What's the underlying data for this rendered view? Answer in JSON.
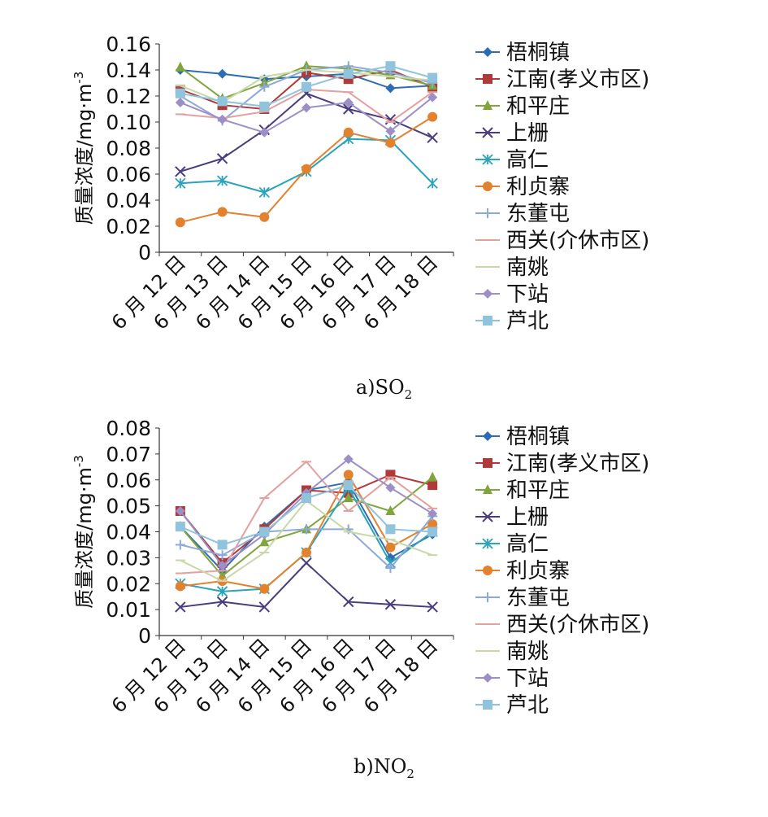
{
  "chart_data": [
    {
      "id": "so2",
      "type": "line",
      "caption": "a)SO",
      "caption_sub": "2",
      "ylabel": "质量浓度/mg·m",
      "ylabel_sup": "-3",
      "ylim": [
        0,
        0.16
      ],
      "yticks": [
        "0",
        "0.02",
        "0.04",
        "0.06",
        "0.08",
        "0.10",
        "0.12",
        "0.14",
        "0.16"
      ],
      "categories": [
        "6 月 12 日",
        "6 月 13 日",
        "6 月 14 日",
        "6 月 15 日",
        "6 月 16 日",
        "6 月 17 日",
        "6 月 18 日"
      ],
      "grid": false,
      "legend_position": "right",
      "series": [
        {
          "name": "梧桐镇",
          "color": "#2e6db4",
          "marker": "diamond",
          "values": [
            0.14,
            0.137,
            0.133,
            0.135,
            0.137,
            0.126,
            0.128
          ]
        },
        {
          "name": "江南(孝义市区)",
          "color": "#b03a3a",
          "marker": "square",
          "values": [
            0.125,
            0.113,
            0.11,
            0.138,
            0.133,
            0.14,
            0.127
          ]
        },
        {
          "name": "和平庄",
          "color": "#7fa53c",
          "marker": "triangle",
          "values": [
            0.142,
            0.118,
            0.13,
            0.143,
            0.141,
            0.136,
            0.128
          ]
        },
        {
          "name": "上栅",
          "color": "#4b3c7e",
          "marker": "x",
          "values": [
            0.062,
            0.072,
            0.094,
            0.122,
            0.11,
            0.102,
            0.088
          ]
        },
        {
          "name": "高仁",
          "color": "#2aa3bd",
          "marker": "star",
          "values": [
            0.053,
            0.055,
            0.046,
            0.062,
            0.087,
            0.086,
            0.053
          ]
        },
        {
          "name": "利贞寨",
          "color": "#e2812e",
          "marker": "circle",
          "values": [
            0.023,
            0.031,
            0.027,
            0.064,
            0.092,
            0.084,
            0.104
          ]
        },
        {
          "name": "东董屯",
          "color": "#8ea8d8",
          "marker": "plus",
          "values": [
            0.12,
            0.101,
            0.127,
            0.14,
            0.143,
            0.138,
            0.13
          ]
        },
        {
          "name": "西关(介休市区)",
          "color": "#e4a0a0",
          "marker": "dash",
          "values": [
            0.106,
            0.103,
            0.108,
            0.125,
            0.123,
            0.1,
            0.123
          ]
        },
        {
          "name": "南姚",
          "color": "#c8d8a8",
          "marker": "dash",
          "values": [
            0.128,
            0.115,
            0.135,
            0.14,
            0.138,
            0.135,
            0.132
          ]
        },
        {
          "name": "下站",
          "color": "#9c8fc6",
          "marker": "diamond",
          "values": [
            0.115,
            0.102,
            0.092,
            0.111,
            0.115,
            0.093,
            0.119
          ]
        },
        {
          "name": "芦北",
          "color": "#90c4dc",
          "marker": "square",
          "values": [
            0.122,
            0.116,
            0.112,
            0.127,
            0.137,
            0.143,
            0.134
          ]
        }
      ]
    },
    {
      "id": "no2",
      "type": "line",
      "caption": "b)NO",
      "caption_sub": "2",
      "ylabel": "质量浓度/mg·m",
      "ylabel_sup": "-3",
      "ylim": [
        0,
        0.08
      ],
      "yticks": [
        "0",
        "0.01",
        "0.02",
        "0.03",
        "0.04",
        "0.05",
        "0.06",
        "0.07",
        "0.08"
      ],
      "categories": [
        "6 月 12 日",
        "6 月 13 日",
        "6 月 14 日",
        "6 月 15 日",
        "6 月 16 日",
        "6 月 17 日",
        "6 月 18 日"
      ],
      "grid": false,
      "legend_position": "right",
      "series": [
        {
          "name": "梧桐镇",
          "color": "#2e6db4",
          "marker": "diamond",
          "values": [
            0.042,
            0.025,
            0.042,
            0.056,
            0.059,
            0.03,
            0.039
          ]
        },
        {
          "name": "江南(孝义市区)",
          "color": "#b03a3a",
          "marker": "square",
          "values": [
            0.048,
            0.028,
            0.041,
            0.056,
            0.055,
            0.062,
            0.058
          ]
        },
        {
          "name": "和平庄",
          "color": "#7fa53c",
          "marker": "triangle",
          "values": [
            0.042,
            0.023,
            0.036,
            0.041,
            0.053,
            0.048,
            0.061
          ]
        },
        {
          "name": "上栅",
          "color": "#4b3c7e",
          "marker": "x",
          "values": [
            0.011,
            0.013,
            0.011,
            0.028,
            0.013,
            0.012,
            0.011
          ]
        },
        {
          "name": "高仁",
          "color": "#2aa3bd",
          "marker": "star",
          "values": [
            0.02,
            0.017,
            0.018,
            0.032,
            0.057,
            0.028,
            0.04
          ]
        },
        {
          "name": "利贞寨",
          "color": "#e2812e",
          "marker": "circle",
          "values": [
            0.019,
            0.021,
            0.018,
            0.032,
            0.062,
            0.034,
            0.043
          ]
        },
        {
          "name": "东董屯",
          "color": "#8ea8d8",
          "marker": "plus",
          "values": [
            0.035,
            0.031,
            0.04,
            0.041,
            0.041,
            0.026,
            0.046
          ]
        },
        {
          "name": "西关(介休市区)",
          "color": "#e4a0a0",
          "marker": "dash",
          "values": [
            0.024,
            0.025,
            0.053,
            0.067,
            0.048,
            0.061,
            0.049
          ]
        },
        {
          "name": "南姚",
          "color": "#c8d8a8",
          "marker": "dash",
          "values": [
            0.029,
            0.021,
            0.032,
            0.052,
            0.04,
            0.037,
            0.031
          ]
        },
        {
          "name": "下站",
          "color": "#9c8fc6",
          "marker": "diamond",
          "values": [
            0.048,
            0.027,
            0.039,
            0.055,
            0.068,
            0.057,
            0.047
          ]
        },
        {
          "name": "芦北",
          "color": "#90c4dc",
          "marker": "square",
          "values": [
            0.042,
            0.035,
            0.04,
            0.053,
            0.058,
            0.041,
            0.04
          ]
        }
      ]
    }
  ]
}
